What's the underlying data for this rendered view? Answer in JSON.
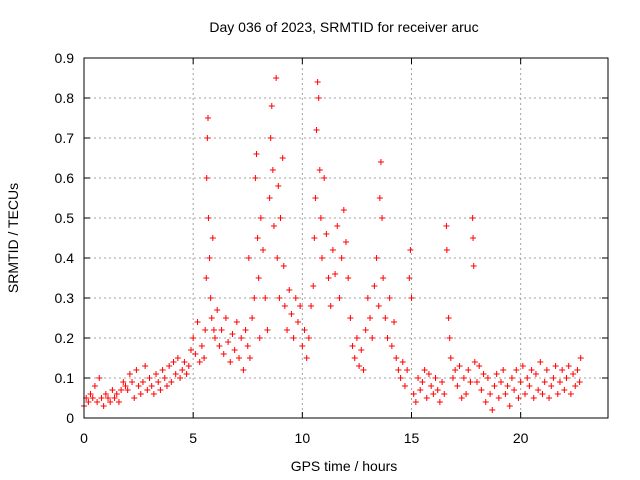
{
  "chart_data": {
    "type": "scatter",
    "title": "Day 036 of 2023, SRMTID for receiver aruc",
    "xlabel": "GPS time / hours",
    "ylabel": "SRMTID / TECUs",
    "xlim": [
      0,
      24
    ],
    "ylim": [
      0,
      0.9
    ],
    "xticks": [
      0,
      5,
      10,
      15,
      20
    ],
    "yticks": [
      0,
      0.1,
      0.2,
      0.3,
      0.4,
      0.5,
      0.6,
      0.7,
      0.8,
      0.9
    ],
    "ytick_labels": [
      "0",
      "0.1",
      "0.2",
      "0.3",
      "0.4",
      "0.5",
      "0.6",
      "0.7",
      "0.8",
      "0.9"
    ],
    "grid": true,
    "marker": "+",
    "marker_color": "#ff0000",
    "series": [
      {
        "name": "SRMTID",
        "points": [
          [
            0.0,
            0.03
          ],
          [
            0.1,
            0.05
          ],
          [
            0.2,
            0.04
          ],
          [
            0.3,
            0.06
          ],
          [
            0.4,
            0.05
          ],
          [
            0.5,
            0.08
          ],
          [
            0.6,
            0.04
          ],
          [
            0.7,
            0.1
          ],
          [
            0.8,
            0.05
          ],
          [
            0.9,
            0.03
          ],
          [
            1.0,
            0.06
          ],
          [
            1.1,
            0.05
          ],
          [
            1.2,
            0.04
          ],
          [
            1.3,
            0.07
          ],
          [
            1.4,
            0.05
          ],
          [
            1.5,
            0.06
          ],
          [
            1.6,
            0.04
          ],
          [
            1.7,
            0.07
          ],
          [
            1.8,
            0.09
          ],
          [
            1.9,
            0.08
          ],
          [
            2.0,
            0.07
          ],
          [
            2.1,
            0.11
          ],
          [
            2.2,
            0.09
          ],
          [
            2.3,
            0.05
          ],
          [
            2.4,
            0.12
          ],
          [
            2.5,
            0.08
          ],
          [
            2.6,
            0.06
          ],
          [
            2.7,
            0.09
          ],
          [
            2.8,
            0.13
          ],
          [
            2.9,
            0.07
          ],
          [
            3.0,
            0.1
          ],
          [
            3.1,
            0.08
          ],
          [
            3.2,
            0.06
          ],
          [
            3.3,
            0.11
          ],
          [
            3.4,
            0.09
          ],
          [
            3.5,
            0.07
          ],
          [
            3.6,
            0.12
          ],
          [
            3.7,
            0.1
          ],
          [
            3.8,
            0.08
          ],
          [
            3.9,
            0.13
          ],
          [
            4.0,
            0.09
          ],
          [
            4.1,
            0.14
          ],
          [
            4.2,
            0.11
          ],
          [
            4.3,
            0.15
          ],
          [
            4.4,
            0.1
          ],
          [
            4.5,
            0.12
          ],
          [
            4.6,
            0.14
          ],
          [
            4.7,
            0.11
          ],
          [
            4.8,
            0.13
          ],
          [
            4.9,
            0.17
          ],
          [
            5.0,
            0.2
          ],
          [
            5.1,
            0.16
          ],
          [
            5.2,
            0.24
          ],
          [
            5.3,
            0.14
          ],
          [
            5.4,
            0.18
          ],
          [
            5.5,
            0.15
          ],
          [
            5.55,
            0.22
          ],
          [
            5.6,
            0.35
          ],
          [
            5.62,
            0.6
          ],
          [
            5.65,
            0.7
          ],
          [
            5.68,
            0.75
          ],
          [
            5.7,
            0.5
          ],
          [
            5.75,
            0.4
          ],
          [
            5.8,
            0.3
          ],
          [
            5.85,
            0.25
          ],
          [
            5.9,
            0.45
          ],
          [
            5.95,
            0.22
          ],
          [
            6.0,
            0.2
          ],
          [
            6.1,
            0.27
          ],
          [
            6.2,
            0.18
          ],
          [
            6.3,
            0.22
          ],
          [
            6.4,
            0.16
          ],
          [
            6.5,
            0.25
          ],
          [
            6.6,
            0.19
          ],
          [
            6.7,
            0.14
          ],
          [
            6.8,
            0.21
          ],
          [
            6.9,
            0.17
          ],
          [
            7.0,
            0.24
          ],
          [
            7.1,
            0.15
          ],
          [
            7.2,
            0.2
          ],
          [
            7.3,
            0.12
          ],
          [
            7.4,
            0.22
          ],
          [
            7.5,
            0.18
          ],
          [
            7.55,
            0.4
          ],
          [
            7.6,
            0.15
          ],
          [
            7.7,
            0.25
          ],
          [
            7.8,
            0.3
          ],
          [
            7.85,
            0.6
          ],
          [
            7.9,
            0.66
          ],
          [
            7.95,
            0.45
          ],
          [
            8.0,
            0.35
          ],
          [
            8.05,
            0.2
          ],
          [
            8.1,
            0.5
          ],
          [
            8.2,
            0.42
          ],
          [
            8.3,
            0.3
          ],
          [
            8.4,
            0.22
          ],
          [
            8.5,
            0.55
          ],
          [
            8.55,
            0.7
          ],
          [
            8.6,
            0.78
          ],
          [
            8.65,
            0.62
          ],
          [
            8.7,
            0.48
          ],
          [
            8.8,
            0.85
          ],
          [
            8.85,
            0.4
          ],
          [
            8.9,
            0.58
          ],
          [
            8.95,
            0.3
          ],
          [
            9.0,
            0.5
          ],
          [
            9.1,
            0.65
          ],
          [
            9.15,
            0.38
          ],
          [
            9.2,
            0.28
          ],
          [
            9.3,
            0.22
          ],
          [
            9.4,
            0.32
          ],
          [
            9.5,
            0.26
          ],
          [
            9.6,
            0.2
          ],
          [
            9.7,
            0.3
          ],
          [
            9.8,
            0.24
          ],
          [
            9.9,
            0.28
          ],
          [
            10.0,
            0.18
          ],
          [
            10.1,
            0.22
          ],
          [
            10.2,
            0.15
          ],
          [
            10.3,
            0.2
          ],
          [
            10.4,
            0.28
          ],
          [
            10.5,
            0.33
          ],
          [
            10.55,
            0.45
          ],
          [
            10.6,
            0.55
          ],
          [
            10.65,
            0.72
          ],
          [
            10.7,
            0.84
          ],
          [
            10.75,
            0.8
          ],
          [
            10.8,
            0.62
          ],
          [
            10.85,
            0.5
          ],
          [
            10.9,
            0.4
          ],
          [
            11.0,
            0.6
          ],
          [
            11.1,
            0.46
          ],
          [
            11.2,
            0.35
          ],
          [
            11.3,
            0.28
          ],
          [
            11.4,
            0.42
          ],
          [
            11.5,
            0.36
          ],
          [
            11.6,
            0.48
          ],
          [
            11.7,
            0.3
          ],
          [
            11.8,
            0.4
          ],
          [
            11.9,
            0.52
          ],
          [
            12.0,
            0.44
          ],
          [
            12.1,
            0.35
          ],
          [
            12.2,
            0.25
          ],
          [
            12.3,
            0.18
          ],
          [
            12.4,
            0.15
          ],
          [
            12.5,
            0.2
          ],
          [
            12.6,
            0.13
          ],
          [
            12.7,
            0.17
          ],
          [
            12.8,
            0.12
          ],
          [
            12.9,
            0.22
          ],
          [
            13.0,
            0.3
          ],
          [
            13.1,
            0.25
          ],
          [
            13.2,
            0.2
          ],
          [
            13.3,
            0.33
          ],
          [
            13.4,
            0.4
          ],
          [
            13.5,
            0.28
          ],
          [
            13.55,
            0.55
          ],
          [
            13.6,
            0.64
          ],
          [
            13.65,
            0.5
          ],
          [
            13.7,
            0.35
          ],
          [
            13.8,
            0.25
          ],
          [
            13.9,
            0.2
          ],
          [
            14.0,
            0.3
          ],
          [
            14.1,
            0.18
          ],
          [
            14.2,
            0.24
          ],
          [
            14.3,
            0.15
          ],
          [
            14.4,
            0.12
          ],
          [
            14.5,
            0.1
          ],
          [
            14.6,
            0.14
          ],
          [
            14.7,
            0.08
          ],
          [
            14.8,
            0.12
          ],
          [
            14.9,
            0.35
          ],
          [
            14.95,
            0.42
          ],
          [
            15.0,
            0.3
          ],
          [
            15.1,
            0.06
          ],
          [
            15.2,
            0.04
          ],
          [
            15.3,
            0.1
          ],
          [
            15.4,
            0.07
          ],
          [
            15.5,
            0.09
          ],
          [
            15.6,
            0.12
          ],
          [
            15.7,
            0.05
          ],
          [
            15.8,
            0.11
          ],
          [
            15.9,
            0.08
          ],
          [
            16.0,
            0.06
          ],
          [
            16.1,
            0.1
          ],
          [
            16.2,
            0.07
          ],
          [
            16.3,
            0.04
          ],
          [
            16.4,
            0.09
          ],
          [
            16.5,
            0.06
          ],
          [
            16.6,
            0.48
          ],
          [
            16.62,
            0.42
          ],
          [
            16.7,
            0.25
          ],
          [
            16.75,
            0.2
          ],
          [
            16.8,
            0.15
          ],
          [
            16.9,
            0.1
          ],
          [
            17.0,
            0.12
          ],
          [
            17.1,
            0.08
          ],
          [
            17.2,
            0.13
          ],
          [
            17.3,
            0.05
          ],
          [
            17.4,
            0.1
          ],
          [
            17.5,
            0.06
          ],
          [
            17.6,
            0.12
          ],
          [
            17.7,
            0.09
          ],
          [
            17.8,
            0.5
          ],
          [
            17.82,
            0.45
          ],
          [
            17.85,
            0.38
          ],
          [
            17.9,
            0.14
          ],
          [
            18.0,
            0.09
          ],
          [
            18.1,
            0.13
          ],
          [
            18.2,
            0.07
          ],
          [
            18.3,
            0.11
          ],
          [
            18.4,
            0.04
          ],
          [
            18.5,
            0.1
          ],
          [
            18.6,
            0.06
          ],
          [
            18.7,
            0.02
          ],
          [
            18.8,
            0.08
          ],
          [
            18.9,
            0.11
          ],
          [
            19.0,
            0.05
          ],
          [
            19.1,
            0.09
          ],
          [
            19.2,
            0.12
          ],
          [
            19.3,
            0.06
          ],
          [
            19.4,
            0.08
          ],
          [
            19.5,
            0.03
          ],
          [
            19.6,
            0.1
          ],
          [
            19.7,
            0.07
          ],
          [
            19.8,
            0.12
          ],
          [
            19.9,
            0.05
          ],
          [
            20.0,
            0.09
          ],
          [
            20.1,
            0.13
          ],
          [
            20.2,
            0.06
          ],
          [
            20.3,
            0.1
          ],
          [
            20.4,
            0.08
          ],
          [
            20.5,
            0.12
          ],
          [
            20.6,
            0.05
          ],
          [
            20.7,
            0.11
          ],
          [
            20.8,
            0.07
          ],
          [
            20.9,
            0.14
          ],
          [
            21.0,
            0.06
          ],
          [
            21.1,
            0.09
          ],
          [
            21.2,
            0.12
          ],
          [
            21.3,
            0.05
          ],
          [
            21.4,
            0.08
          ],
          [
            21.5,
            0.1
          ],
          [
            21.6,
            0.13
          ],
          [
            21.7,
            0.06
          ],
          [
            21.8,
            0.09
          ],
          [
            21.9,
            0.12
          ],
          [
            22.0,
            0.07
          ],
          [
            22.1,
            0.1
          ],
          [
            22.2,
            0.13
          ],
          [
            22.3,
            0.06
          ],
          [
            22.4,
            0.11
          ],
          [
            22.5,
            0.08
          ],
          [
            22.6,
            0.12
          ],
          [
            22.7,
            0.09
          ],
          [
            22.75,
            0.15
          ]
        ]
      }
    ]
  }
}
